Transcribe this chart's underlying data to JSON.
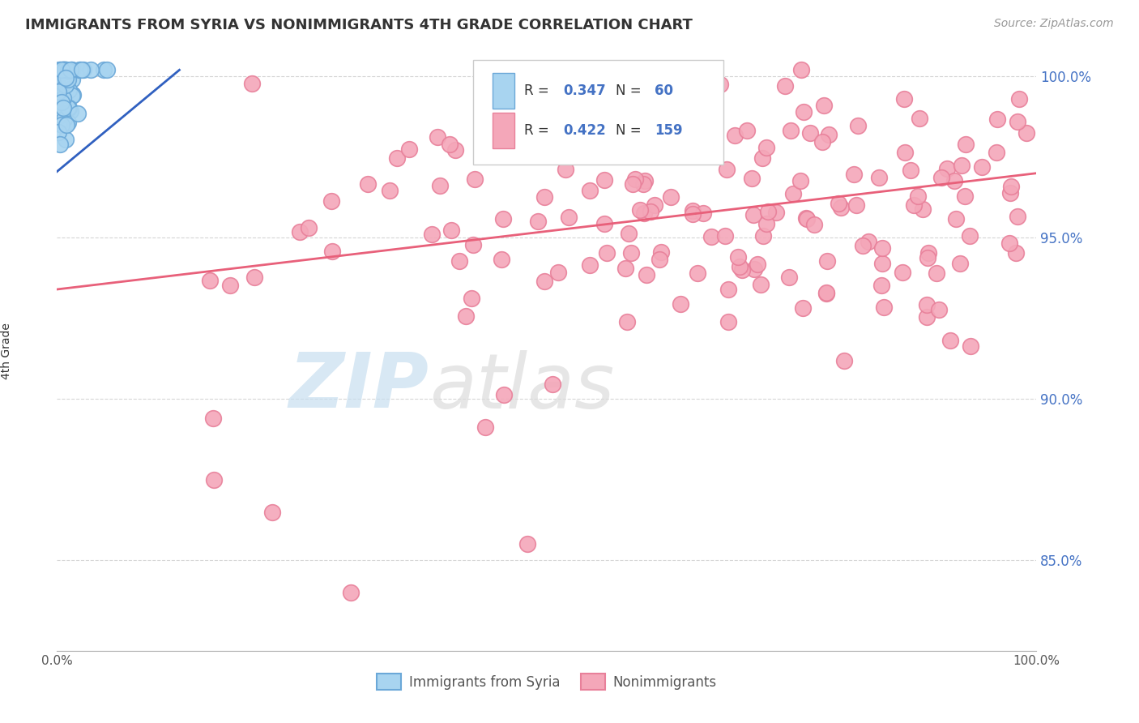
{
  "title": "IMMIGRANTS FROM SYRIA VS NONIMMIGRANTS 4TH GRADE CORRELATION CHART",
  "source": "Source: ZipAtlas.com",
  "ylabel": "4th Grade",
  "xlim": [
    0,
    1
  ],
  "ylim": [
    0.822,
    1.008
  ],
  "yticks": [
    0.85,
    0.9,
    0.95,
    1.0
  ],
  "ytick_labels": [
    "85.0%",
    "90.0%",
    "95.0%",
    "100.0%"
  ],
  "blue_color": "#A8D4F0",
  "pink_color": "#F4A7B9",
  "blue_line_color": "#3060C0",
  "pink_line_color": "#E8607A",
  "blue_edge_color": "#6BA8D8",
  "pink_edge_color": "#E8809A",
  "background_color": "#FFFFFF",
  "pink_trend_x0": 0.0,
  "pink_trend_y0": 0.934,
  "pink_trend_x1": 1.0,
  "pink_trend_y1": 0.97,
  "blue_trend_x0": 0.0,
  "blue_trend_y0": 0.9705,
  "blue_trend_x1": 0.125,
  "blue_trend_y1": 1.002
}
